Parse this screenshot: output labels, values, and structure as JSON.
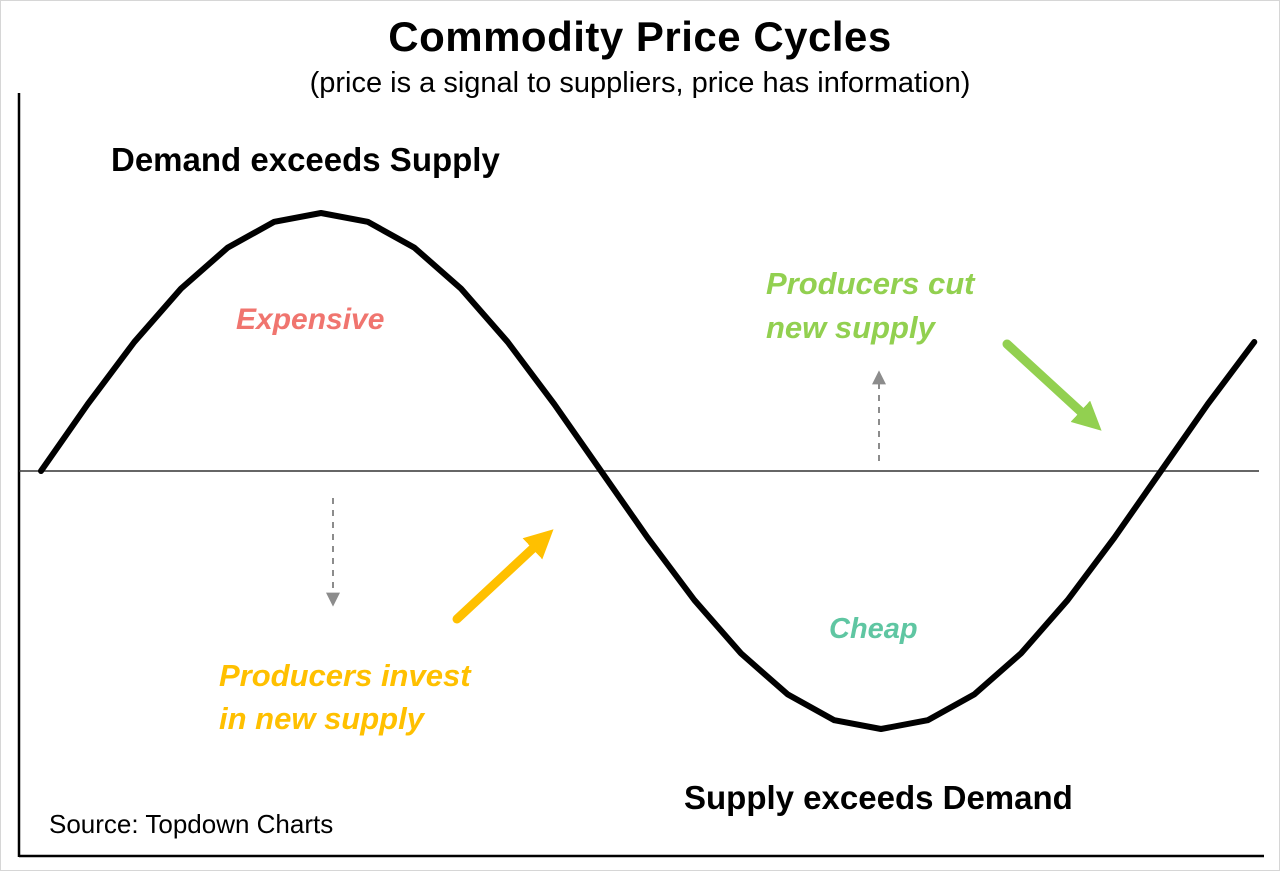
{
  "title": "Commodity Price Cycles",
  "subtitle": "(price is a signal to suppliers, price has information)",
  "source": "Source: Topdown Charts",
  "colors": {
    "curve": "#000000",
    "axis": "#000000",
    "midline": "#333333",
    "gray": "#8c8c8c",
    "orange": "#FFC000",
    "green": "#92D050",
    "salmon": "#F0756F",
    "mint": "#5FC6A2"
  },
  "labels": {
    "demand_exceeds_supply": "Demand exceeds Supply",
    "supply_exceeds_demand": "Supply exceeds Demand",
    "expensive": "Expensive",
    "cheap": "Cheap",
    "producers_cut": {
      "lines": [
        "Producers cut",
        "new supply"
      ]
    },
    "producers_invest": {
      "lines": [
        "Producers invest",
        "in new supply"
      ]
    }
  },
  "chart_data": {
    "type": "line",
    "title": "Commodity Price Cycles",
    "subtitle": "(price is a signal to suppliers, price has information)",
    "xlabel": "",
    "ylabel": "",
    "x_unit": "cycle phase (degrees)",
    "y_unit": "price relative to equilibrium midline",
    "ylim": [
      -1.15,
      1.15
    ],
    "baseline": 0,
    "grid": false,
    "legend": "none",
    "axes": {
      "left_axis": true,
      "bottom_axis": true,
      "horizontal_midline_at": 0,
      "ticks": "none"
    },
    "series": [
      {
        "name": "Commodity price cycle (sine wave)",
        "x_deg": [
          0,
          15,
          30,
          45,
          60,
          75,
          90,
          105,
          120,
          135,
          150,
          165,
          180,
          195,
          210,
          225,
          240,
          255,
          270,
          285,
          300,
          315,
          330,
          345,
          360,
          375,
          390
        ],
        "y": [
          0,
          0.259,
          0.5,
          0.707,
          0.866,
          0.966,
          1,
          0.966,
          0.866,
          0.707,
          0.5,
          0.259,
          0,
          -0.259,
          -0.5,
          -0.707,
          -0.866,
          -0.966,
          -1,
          -0.966,
          -0.866,
          -0.707,
          -0.5,
          -0.259,
          0,
          0.259,
          0.5
        ]
      }
    ],
    "annotations": [
      {
        "text": "Demand exceeds Supply",
        "color": "#000000",
        "style": "bold",
        "position": "upper left, above rising/peak phase"
      },
      {
        "text": "Expensive",
        "color": "#F0756F",
        "style": "bold italic",
        "position": "inside peak area (~phase 90°, above midline)"
      },
      {
        "text": "Producers cut new supply",
        "color": "#92D050",
        "style": "bold italic",
        "position": "upper right, above midline (~phase 270°)",
        "arrows": [
          "gray dashed arrow pointing up toward label from midline",
          "green solid arrow pointing down-right toward midline crossing"
        ]
      },
      {
        "text": "Producers invest in new supply",
        "color": "#FFC000",
        "style": "bold italic",
        "position": "lower left, below midline (~phase 90°)",
        "arrows": [
          "gray dashed arrow pointing down from midline toward label",
          "orange solid arrow pointing up-right toward midline crossing"
        ]
      },
      {
        "text": "Cheap",
        "color": "#5FC6A2",
        "style": "bold italic",
        "position": "inside trough area (~phase 270°, below midline)"
      },
      {
        "text": "Supply exceeds Demand",
        "color": "#000000",
        "style": "bold",
        "position": "lower right, below trough phase"
      },
      {
        "text": "Source: Topdown Charts",
        "color": "#000000",
        "style": "regular",
        "position": "bottom left"
      }
    ]
  }
}
